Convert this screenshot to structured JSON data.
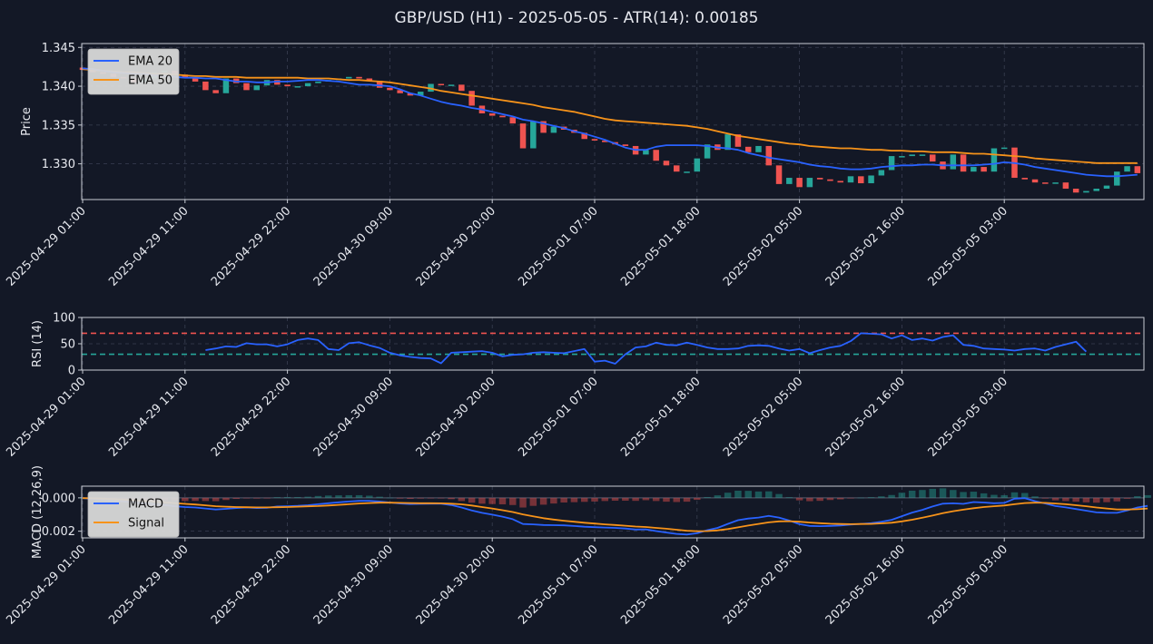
{
  "figure": {
    "title": "GBP/USD (H1) - 2025-05-05 - ATR(14): 0.00185"
  },
  "colors": {
    "background": "#131826",
    "axes_edge": "#c8ccd4",
    "grid": "#3a3f52",
    "text": "#e6e8ee",
    "bull": "#26a69a",
    "bear": "#ef5350",
    "ema20": "#2962ff",
    "ema50": "#f7931a",
    "rsi": "#2962ff",
    "rsi_overbought": "#ef5350",
    "rsi_oversold": "#26a69a",
    "macd": "#2962ff",
    "signal": "#f7931a",
    "hist_pos": "#26a69a",
    "hist_neg": "#ef5350",
    "legend_bg": "#d9d9d9"
  },
  "chart_data": [
    {
      "type": "candlestick",
      "panel": "price",
      "ylabel": "Price",
      "ylim": [
        1.3254,
        1.3455
      ],
      "yticks": [
        "1.330",
        "1.335",
        "1.340",
        "1.345"
      ],
      "xticks": [
        "2025-04-29 01:00",
        "2025-04-29 11:00",
        "2025-04-29 22:00",
        "2025-04-30 09:00",
        "2025-04-30 20:00",
        "2025-05-01 07:00",
        "2025-05-01 18:00",
        "2025-05-02 05:00",
        "2025-05-02 16:00",
        "2025-05-05 03:00"
      ],
      "grid": true,
      "legend_position": "top-left",
      "series": [
        {
          "name": "EMA 20",
          "values": [
            1.3423,
            1.3422,
            1.342,
            1.3418,
            1.3417,
            1.3416,
            1.3416,
            1.3414,
            1.3413,
            1.3412,
            1.3411,
            1.3411,
            1.341,
            1.341,
            1.3408,
            1.3406,
            1.3406,
            1.3405,
            1.3405,
            1.3406,
            1.3406,
            1.3407,
            1.3408,
            1.3408,
            1.3407,
            1.3406,
            1.3404,
            1.3402,
            1.3402,
            1.3401,
            1.34,
            1.3396,
            1.3391,
            1.3388,
            1.3384,
            1.338,
            1.3377,
            1.3375,
            1.3372,
            1.337,
            1.3367,
            1.3364,
            1.3361,
            1.3357,
            1.3355,
            1.3352,
            1.3349,
            1.3346,
            1.3342,
            1.3339,
            1.3335,
            1.3331,
            1.3326,
            1.3321,
            1.3318,
            1.3318,
            1.3322,
            1.3324,
            1.3324,
            1.3324,
            1.3324,
            1.3323,
            1.3321,
            1.332,
            1.3318,
            1.3314,
            1.3311,
            1.3308,
            1.3306,
            1.3304,
            1.3302,
            1.3299,
            1.3297,
            1.3296,
            1.3294,
            1.3293,
            1.3293,
            1.3294,
            1.3296,
            1.3297,
            1.3298,
            1.3298,
            1.3299,
            1.3299,
            1.3298,
            1.3298,
            1.3298,
            1.3298,
            1.3299,
            1.33,
            1.3302,
            1.3301,
            1.3299,
            1.3296,
            1.3294,
            1.3292,
            1.329,
            1.3288,
            1.3286,
            1.3285,
            1.3284,
            1.3284,
            1.3285,
            1.3286
          ]
        },
        {
          "name": "EMA 50",
          "values": [
            1.3422,
            1.3421,
            1.342,
            1.3419,
            1.3418,
            1.3418,
            1.3417,
            1.3416,
            1.3416,
            1.3415,
            1.3414,
            1.3413,
            1.3413,
            1.3412,
            1.3412,
            1.3412,
            1.3411,
            1.3411,
            1.3411,
            1.3411,
            1.3411,
            1.3411,
            1.341,
            1.341,
            1.341,
            1.3409,
            1.3408,
            1.3408,
            1.3407,
            1.3406,
            1.3405,
            1.3403,
            1.3401,
            1.3399,
            1.3397,
            1.3394,
            1.3392,
            1.339,
            1.3388,
            1.3386,
            1.3384,
            1.3382,
            1.338,
            1.3378,
            1.3376,
            1.3373,
            1.3371,
            1.3369,
            1.3367,
            1.3364,
            1.3361,
            1.3358,
            1.3356,
            1.3355,
            1.3354,
            1.3353,
            1.3352,
            1.3351,
            1.335,
            1.3349,
            1.3347,
            1.3345,
            1.3342,
            1.3339,
            1.3336,
            1.3334,
            1.3332,
            1.333,
            1.3328,
            1.3326,
            1.3325,
            1.3323,
            1.3322,
            1.3321,
            1.332,
            1.332,
            1.3319,
            1.3318,
            1.3318,
            1.3317,
            1.3317,
            1.3316,
            1.3316,
            1.3315,
            1.3315,
            1.3315,
            1.3314,
            1.3313,
            1.3313,
            1.3312,
            1.3311,
            1.331,
            1.3309,
            1.3307,
            1.3306,
            1.3305,
            1.3304,
            1.3303,
            1.3302,
            1.3301,
            1.3301,
            1.3301,
            1.3301,
            1.3301
          ]
        }
      ],
      "candles": [
        [
          1.3424,
          1.3421
        ],
        [
          1.3421,
          1.3418
        ],
        [
          1.3418,
          1.3416
        ],
        [
          1.3416,
          1.3412
        ],
        [
          1.3412,
          1.341
        ],
        [
          1.341,
          1.3405
        ],
        [
          1.3405,
          1.341
        ],
        [
          1.341,
          1.3418
        ],
        [
          1.3418,
          1.342
        ],
        [
          1.342,
          1.3415
        ],
        [
          1.3415,
          1.3411
        ],
        [
          1.3411,
          1.3406
        ],
        [
          1.3406,
          1.3395
        ],
        [
          1.3395,
          1.3391
        ],
        [
          1.3391,
          1.341
        ],
        [
          1.341,
          1.3404
        ],
        [
          1.3404,
          1.3395
        ],
        [
          1.3395,
          1.3401
        ],
        [
          1.3401,
          1.3408
        ],
        [
          1.3408,
          1.3402
        ],
        [
          1.3402,
          1.34
        ],
        [
          1.34,
          1.34
        ],
        [
          1.34,
          1.3404
        ],
        [
          1.3404,
          1.3406
        ],
        [
          1.3406,
          1.3408
        ],
        [
          1.3408,
          1.341
        ],
        [
          1.341,
          1.3412
        ],
        [
          1.3412,
          1.341
        ],
        [
          1.341,
          1.3407
        ],
        [
          1.3407,
          1.3398
        ],
        [
          1.3398,
          1.3395
        ],
        [
          1.3395,
          1.3391
        ],
        [
          1.3391,
          1.3388
        ],
        [
          1.3388,
          1.3393
        ],
        [
          1.3393,
          1.3403
        ],
        [
          1.3403,
          1.3402
        ],
        [
          1.3402,
          1.3402
        ],
        [
          1.3402,
          1.3394
        ],
        [
          1.3394,
          1.3375
        ],
        [
          1.3375,
          1.3365
        ],
        [
          1.3365,
          1.3362
        ],
        [
          1.3362,
          1.336
        ],
        [
          1.336,
          1.3352
        ],
        [
          1.3352,
          1.332
        ],
        [
          1.332,
          1.3355
        ],
        [
          1.3355,
          1.334
        ],
        [
          1.334,
          1.3348
        ],
        [
          1.3348,
          1.3344
        ],
        [
          1.3344,
          1.334
        ],
        [
          1.334,
          1.3332
        ],
        [
          1.3332,
          1.333
        ],
        [
          1.333,
          1.3328
        ],
        [
          1.3328,
          1.3325
        ],
        [
          1.3325,
          1.3323
        ],
        [
          1.3323,
          1.3312
        ],
        [
          1.3312,
          1.3318
        ],
        [
          1.3318,
          1.3304
        ],
        [
          1.3304,
          1.3298
        ],
        [
          1.3298,
          1.329
        ],
        [
          1.329,
          1.329
        ],
        [
          1.329,
          1.3307
        ],
        [
          1.3307,
          1.3325
        ],
        [
          1.3325,
          1.3318
        ],
        [
          1.3318,
          1.3338
        ],
        [
          1.3338,
          1.3322
        ],
        [
          1.3322,
          1.3315
        ],
        [
          1.3315,
          1.3323
        ],
        [
          1.3323,
          1.3298
        ],
        [
          1.3298,
          1.3274
        ],
        [
          1.3274,
          1.3282
        ],
        [
          1.3282,
          1.327
        ],
        [
          1.327,
          1.3282
        ],
        [
          1.3282,
          1.328
        ],
        [
          1.328,
          1.3278
        ],
        [
          1.3278,
          1.3276
        ],
        [
          1.3276,
          1.3284
        ],
        [
          1.3284,
          1.3275
        ],
        [
          1.3275,
          1.3285
        ],
        [
          1.3285,
          1.3292
        ],
        [
          1.3292,
          1.331
        ],
        [
          1.331,
          1.331
        ],
        [
          1.331,
          1.3312
        ],
        [
          1.3312,
          1.3312
        ],
        [
          1.3312,
          1.3303
        ],
        [
          1.3303,
          1.3293
        ],
        [
          1.3293,
          1.3312
        ],
        [
          1.3312,
          1.329
        ],
        [
          1.329,
          1.3296
        ],
        [
          1.3296,
          1.329
        ],
        [
          1.329,
          1.332
        ],
        [
          1.332,
          1.3321
        ],
        [
          1.3321,
          1.3282
        ],
        [
          1.3282,
          1.328
        ],
        [
          1.328,
          1.3276
        ],
        [
          1.3276,
          1.3275
        ],
        [
          1.3275,
          1.3276
        ],
        [
          1.3276,
          1.3268
        ],
        [
          1.3268,
          1.3263
        ],
        [
          1.3263,
          1.3265
        ],
        [
          1.3265,
          1.3268
        ],
        [
          1.3268,
          1.3272
        ],
        [
          1.3272,
          1.329
        ],
        [
          1.329,
          1.3297
        ],
        [
          1.3297,
          1.3288
        ]
      ]
    },
    {
      "type": "line",
      "panel": "rsi",
      "ylabel": "RSI (14)",
      "ylim": [
        0,
        100
      ],
      "yticks": [
        "0",
        "50",
        "100"
      ],
      "overbought": 70,
      "oversold": 30,
      "xticks": [
        "2025-04-29 01:00",
        "2025-04-29 11:00",
        "2025-04-29 22:00",
        "2025-04-30 09:00",
        "2025-04-30 20:00",
        "2025-05-01 07:00",
        "2025-05-01 18:00",
        "2025-05-02 05:00",
        "2025-05-02 16:00",
        "2025-05-05 03:00"
      ],
      "grid": true,
      "series": [
        {
          "name": "RSI",
          "start_index": 12,
          "values": [
            38,
            41,
            45,
            44,
            51,
            49,
            49,
            45,
            49,
            57,
            60,
            57,
            40,
            38,
            51,
            53,
            47,
            42,
            33,
            28,
            25,
            23,
            22,
            13,
            33,
            34,
            35,
            36,
            33,
            26,
            29,
            30,
            33,
            34,
            33,
            32,
            36,
            40,
            16,
            18,
            12,
            30,
            43,
            45,
            52,
            48,
            47,
            52,
            48,
            43,
            40,
            40,
            41,
            46,
            47,
            46,
            41,
            37,
            40,
            32,
            38,
            43,
            46,
            55,
            70,
            69,
            68,
            60,
            66,
            57,
            60,
            56,
            63,
            66,
            48,
            46,
            41,
            40,
            39,
            37,
            40,
            41,
            37,
            44,
            49,
            54,
            35
          ]
        }
      ]
    },
    {
      "type": "line",
      "panel": "macd",
      "ylabel": "MACD (12,26,9)",
      "ylim": [
        -0.0024,
        0.0007
      ],
      "yticks": [
        "0.000",
        "−0.002"
      ],
      "xticks": [
        "2025-04-29 01:00",
        "2025-04-29 11:00",
        "2025-04-29 22:00",
        "2025-04-30 09:00",
        "2025-04-30 20:00",
        "2025-05-01 07:00",
        "2025-05-01 18:00",
        "2025-05-02 05:00",
        "2025-05-02 16:00",
        "2025-05-05 03:00"
      ],
      "grid": true,
      "legend_position": "top-left",
      "series": [
        {
          "name": "MACD",
          "values": [
            -2e-05,
            -6e-05,
            -0.00012,
            -0.00018,
            -0.00022,
            -0.00028,
            -0.00034,
            -0.00039,
            -0.00043,
            -0.0005,
            -0.00055,
            -0.00058,
            -0.00064,
            -0.0007,
            -0.00066,
            -0.00061,
            -0.00058,
            -0.00061,
            -0.0006,
            -0.00052,
            -0.0005,
            -0.00048,
            -0.00044,
            -0.00038,
            -0.00032,
            -0.00027,
            -0.00022,
            -0.00018,
            -0.00018,
            -0.00022,
            -0.00028,
            -0.00034,
            -0.00037,
            -0.00036,
            -0.00035,
            -0.00035,
            -0.00043,
            -0.00058,
            -0.00075,
            -0.0009,
            -0.00101,
            -0.00113,
            -0.00128,
            -0.00157,
            -0.00159,
            -0.00163,
            -0.00164,
            -0.00165,
            -0.00169,
            -0.00173,
            -0.00176,
            -0.00178,
            -0.0018,
            -0.00184,
            -0.0019,
            -0.00189,
            -0.00199,
            -0.00208,
            -0.00216,
            -0.0022,
            -0.00212,
            -0.00194,
            -0.0018,
            -0.00156,
            -0.00134,
            -0.00124,
            -0.00118,
            -0.00108,
            -0.00118,
            -0.00136,
            -0.00158,
            -0.00168,
            -0.0017,
            -0.00168,
            -0.00166,
            -0.0016,
            -0.00156,
            -0.00152,
            -0.00144,
            -0.00132,
            -0.0011,
            -0.00088,
            -0.00072,
            -0.00052,
            -0.00035,
            -0.00033,
            -0.00036,
            -0.00025,
            -0.00028,
            -0.00032,
            -0.0003,
            -5e-05,
            -2e-05,
            -0.0002,
            -0.00034,
            -0.00049,
            -0.00057,
            -0.00067,
            -0.00077,
            -0.00087,
            -0.0009,
            -0.0009,
            -0.00075,
            -0.00058,
            -0.00048
          ]
        },
        {
          "name": "Signal",
          "values": [
            -2e-05,
            -3e-05,
            -5e-05,
            -8e-05,
            -0.00011,
            -0.00014,
            -0.00018,
            -0.00022,
            -0.00026,
            -0.00031,
            -0.00036,
            -0.0004,
            -0.00045,
            -0.0005,
            -0.00053,
            -0.00055,
            -0.00056,
            -0.00057,
            -0.00057,
            -0.00056,
            -0.00055,
            -0.00053,
            -0.00051,
            -0.00049,
            -0.00046,
            -0.00042,
            -0.00038,
            -0.00034,
            -0.00031,
            -0.00029,
            -0.00029,
            -0.0003,
            -0.00031,
            -0.00032,
            -0.00032,
            -0.00033,
            -0.00035,
            -0.00039,
            -0.00046,
            -0.00055,
            -0.00064,
            -0.00074,
            -0.00085,
            -0.00099,
            -0.00111,
            -0.00122,
            -0.0013,
            -0.00137,
            -0.00143,
            -0.00149,
            -0.00154,
            -0.00159,
            -0.00163,
            -0.00167,
            -0.00172,
            -0.00175,
            -0.0018,
            -0.00185,
            -0.00191,
            -0.00197,
            -0.002,
            -0.00199,
            -0.00195,
            -0.00187,
            -0.00177,
            -0.00166,
            -0.00156,
            -0.00147,
            -0.00141,
            -0.0014,
            -0.00143,
            -0.00148,
            -0.00152,
            -0.00155,
            -0.00157,
            -0.00158,
            -0.00157,
            -0.00156,
            -0.00153,
            -0.00149,
            -0.00141,
            -0.00131,
            -0.00119,
            -0.00106,
            -0.00092,
            -0.0008,
            -0.00071,
            -0.00062,
            -0.00055,
            -0.0005,
            -0.00046,
            -0.00038,
            -0.00031,
            -0.00029,
            -0.0003,
            -0.00034,
            -0.00038,
            -0.00044,
            -0.0005,
            -0.00058,
            -0.00064,
            -0.00069,
            -0.0007,
            -0.00068,
            -0.00064
          ]
        }
      ]
    }
  ]
}
